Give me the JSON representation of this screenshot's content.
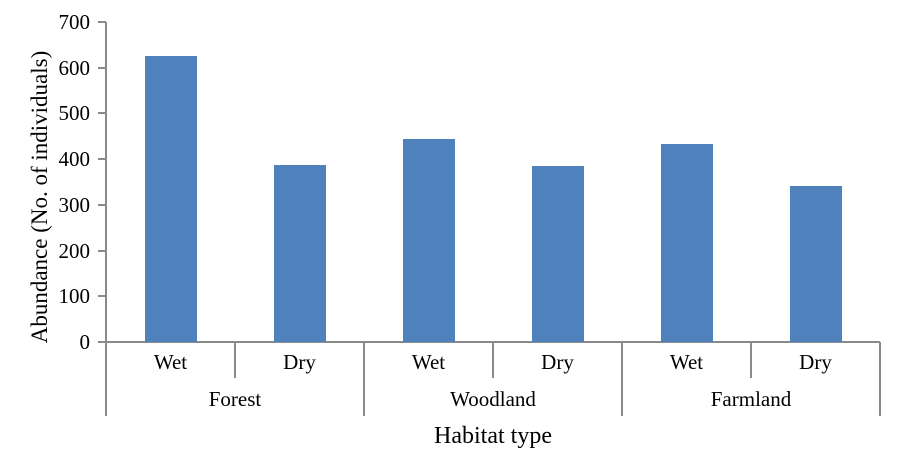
{
  "chart_data": {
    "type": "bar",
    "xlabel": "Habitat type",
    "ylabel": "Abundance (No. of individuals)",
    "ylim": [
      0,
      700
    ],
    "ytick_interval": 100,
    "ytick_labels": [
      "0",
      "100",
      "200",
      "300",
      "400",
      "500",
      "600",
      "700"
    ],
    "grid": false,
    "legend": "none",
    "bar_color": "#4f81bd",
    "axis_color": "#8a8a8a",
    "text_color": "#000000",
    "categories": [
      "Forest Wet",
      "Forest Dry",
      "Woodland Wet",
      "Woodland Dry",
      "Farmland Wet",
      "Farmland Dry"
    ],
    "values": [
      625,
      388,
      445,
      385,
      433,
      341
    ],
    "groups": [
      {
        "label": "Forest",
        "bars": [
          {
            "label": "Wet",
            "value": 625
          },
          {
            "label": "Dry",
            "value": 388
          }
        ]
      },
      {
        "label": "Woodland",
        "bars": [
          {
            "label": "Wet",
            "value": 445
          },
          {
            "label": "Dry",
            "value": 385
          }
        ]
      },
      {
        "label": "Farmland",
        "bars": [
          {
            "label": "Wet",
            "value": 433
          },
          {
            "label": "Dry",
            "value": 341
          }
        ]
      }
    ]
  }
}
